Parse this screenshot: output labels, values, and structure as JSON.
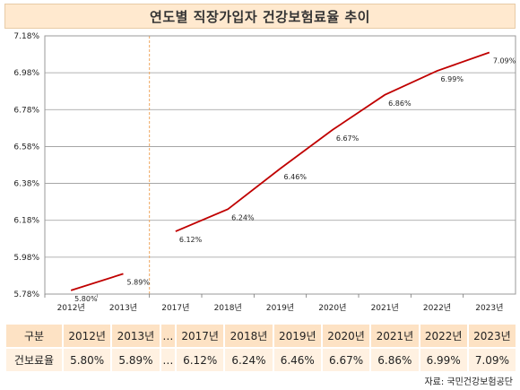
{
  "title": "연도별 직장가입자 건강보험료율 추이",
  "chart_data": {
    "type": "line",
    "title": "연도별 직장가입자 건강보험료율 추이",
    "y_tick_labels": [
      "7.18%",
      "6.98%",
      "6.78%",
      "6.58%",
      "6.38%",
      "6.18%",
      "5.98%",
      "5.78%"
    ],
    "ylim": [
      5.78,
      7.18
    ],
    "categories": [
      "2012년",
      "2013년",
      "2017년",
      "2018년",
      "2019년",
      "2020년",
      "2021년",
      "2022년",
      "2023년"
    ],
    "segments": [
      {
        "values": [
          5.8,
          5.89
        ],
        "labels": [
          "5.80%",
          "5.89%"
        ]
      },
      {
        "values": [
          6.12,
          6.24,
          6.46,
          6.67,
          6.86,
          6.99,
          7.09
        ],
        "labels": [
          "6.12%",
          "6.24%",
          "6.46%",
          "6.67%",
          "6.86%",
          "6.99%",
          "7.09%"
        ]
      }
    ],
    "line_color": "#c00000",
    "break_line_color": "#f0a860",
    "grid": "horizontal"
  },
  "table": {
    "header_label": "구분",
    "years": [
      "2012년",
      "2013년",
      "…",
      "2017년",
      "2018년",
      "2019년",
      "2020년",
      "2021년",
      "2022년",
      "2023년"
    ],
    "row_label": "건보료율",
    "values": [
      "5.80%",
      "5.89%",
      "…",
      "6.12%",
      "6.24%",
      "6.46%",
      "6.67%",
      "6.86%",
      "6.99%",
      "7.09%"
    ]
  },
  "source": "자료: 국민건강보험공단"
}
